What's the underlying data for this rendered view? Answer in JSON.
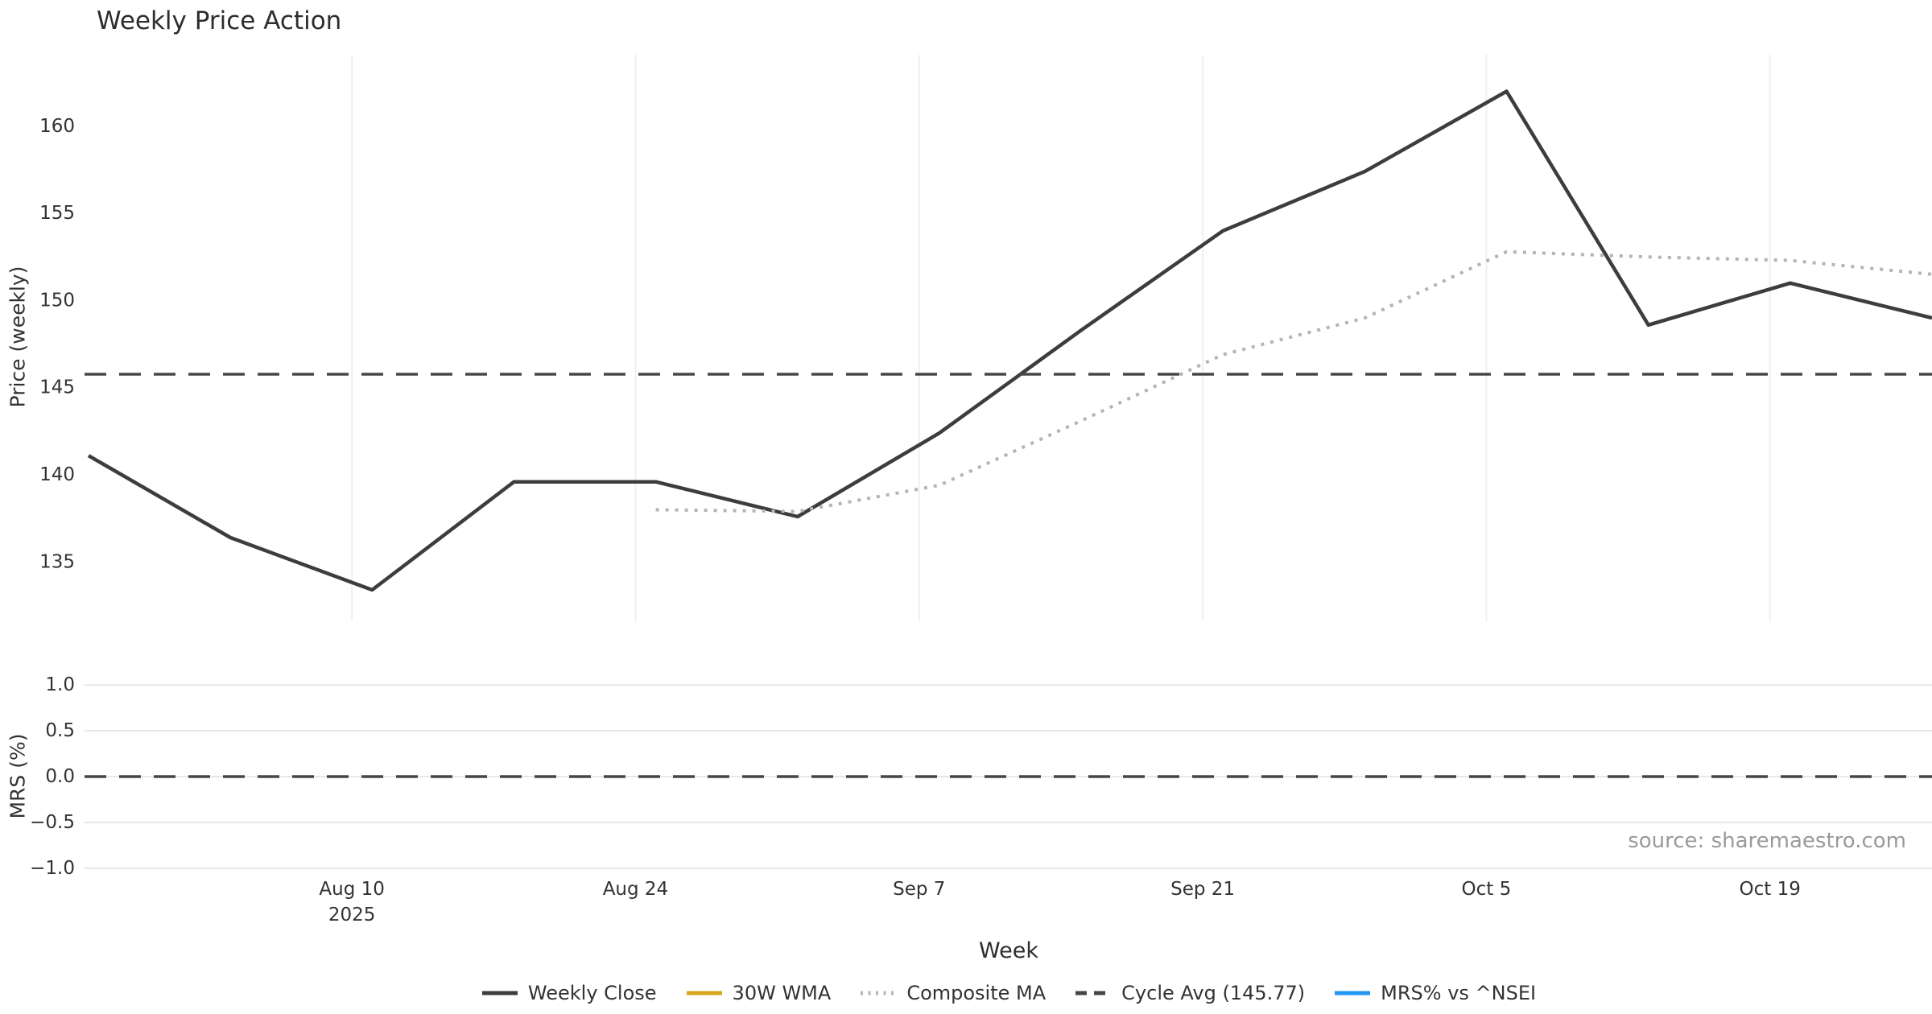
{
  "title": "Weekly Price Action",
  "source_note": "source: sharemaestro.com",
  "colors": {
    "weekly_close": "#3d3d3d",
    "wma_30w": "#d9a520",
    "composite_ma": "#b4b4b4",
    "cycle_avg": "#464646",
    "mrs": "#2196f3",
    "grid_vertical": "#efefef",
    "grid_horizontal": "#e7e7e7",
    "tick_text": "#333333",
    "muted_text": "#9a9a9a"
  },
  "chart_data": [
    {
      "type": "line",
      "panel": "price",
      "ylabel": "Price (weekly)",
      "xlabel": "Week",
      "ylim": [
        131.6,
        164.1
      ],
      "grid": "vertical-only",
      "yticks": [
        {
          "v": 135,
          "label": "135"
        },
        {
          "v": 140,
          "label": "140"
        },
        {
          "v": 145,
          "label": "145"
        },
        {
          "v": 150,
          "label": "150"
        },
        {
          "v": 155,
          "label": "155"
        },
        {
          "v": 160,
          "label": "160"
        }
      ],
      "xticks": [
        {
          "day": 13,
          "lines": [
            "Aug 10",
            "2025"
          ]
        },
        {
          "day": 27,
          "lines": [
            "Aug 24"
          ]
        },
        {
          "day": 41,
          "lines": [
            "Sep 7"
          ]
        },
        {
          "day": 55,
          "lines": [
            "Sep 21"
          ]
        },
        {
          "day": 69,
          "lines": [
            "Oct 5"
          ]
        },
        {
          "day": 83,
          "lines": [
            "Oct 19"
          ]
        }
      ],
      "x_unit": "days from first plotted week (weekly points)",
      "series": [
        {
          "name": "Weekly Close",
          "style": "solid",
          "color_key": "weekly_close",
          "points": [
            [
              0,
              141.1
            ],
            [
              7,
              136.4
            ],
            [
              14,
              133.4
            ],
            [
              21,
              139.6
            ],
            [
              28,
              139.6
            ],
            [
              35,
              137.6
            ],
            [
              42,
              142.4
            ],
            [
              49,
              148.3
            ],
            [
              56,
              154.0
            ],
            [
              63,
              157.4
            ],
            [
              70,
              162.0
            ],
            [
              77,
              148.6
            ],
            [
              84,
              151.0
            ],
            [
              91,
              149.0
            ]
          ]
        },
        {
          "name": "30W WMA",
          "style": "solid",
          "color_key": "wma_30w",
          "points": []
        },
        {
          "name": "Composite MA",
          "style": "dotted",
          "color_key": "composite_ma",
          "points": [
            [
              28,
              138.0
            ],
            [
              35,
              137.9
            ],
            [
              42,
              139.4
            ],
            [
              49,
              143.1
            ],
            [
              56,
              146.9
            ],
            [
              63,
              149.0
            ],
            [
              70,
              152.8
            ],
            [
              77,
              152.5
            ],
            [
              84,
              152.3
            ],
            [
              91,
              151.5
            ]
          ]
        },
        {
          "name": "Cycle Avg",
          "style": "dashed",
          "color_key": "cycle_avg",
          "value": 145.77
        }
      ]
    },
    {
      "type": "line",
      "panel": "mrs",
      "ylabel": "MRS (%)",
      "ylim": [
        -1.045,
        1.045
      ],
      "grid": "horizontal-only",
      "yticks": [
        {
          "v": -1.0,
          "label": "−1.0"
        },
        {
          "v": -0.5,
          "label": "−0.5"
        },
        {
          "v": 0.0,
          "label": "0.0"
        },
        {
          "v": 0.5,
          "label": "0.5"
        },
        {
          "v": 1.0,
          "label": "1.0"
        }
      ],
      "series": [
        {
          "name": "MRS% vs ^NSEI",
          "style": "solid",
          "color_key": "mrs",
          "points": []
        },
        {
          "name": "Zero Line",
          "style": "dashed",
          "color_key": "cycle_avg",
          "value": 0.0
        }
      ]
    }
  ],
  "legend": [
    {
      "label": "Weekly Close",
      "swatch": "solid",
      "color_key": "weekly_close"
    },
    {
      "label": "30W WMA",
      "swatch": "solid",
      "color_key": "wma_30w"
    },
    {
      "label": "Composite MA",
      "swatch": "dotted",
      "color_key": "composite_ma"
    },
    {
      "label": "Cycle Avg (145.77)",
      "swatch": "dashed",
      "color_key": "cycle_avg"
    },
    {
      "label": "MRS% vs ^NSEI",
      "swatch": "solid",
      "color_key": "mrs"
    }
  ]
}
